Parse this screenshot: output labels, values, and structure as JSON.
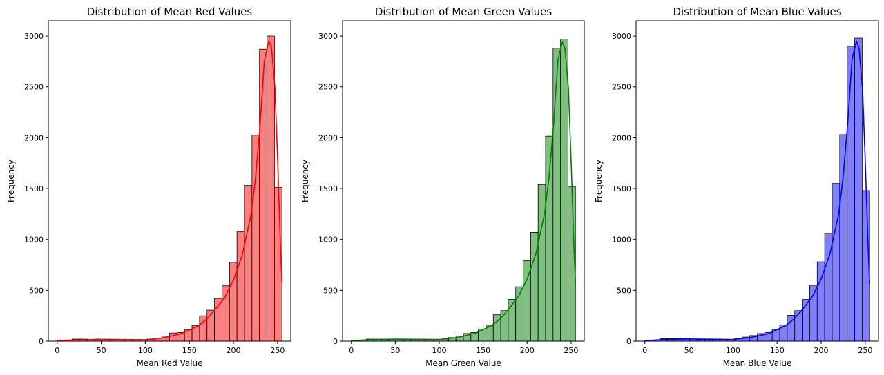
{
  "chart_data": [
    {
      "type": "bar",
      "title": "Distribution of Mean Red Values",
      "xlabel": "Mean Red Value",
      "ylabel": "Frequency",
      "xlim": [
        -10,
        265
      ],
      "ylim": [
        0,
        3150
      ],
      "xticks": [
        0,
        50,
        100,
        150,
        200,
        250
      ],
      "yticks": [
        0,
        500,
        1000,
        1500,
        2000,
        2500,
        3000
      ],
      "bin_edges": [
        0,
        8.5,
        17,
        25.5,
        34,
        42.5,
        51,
        59.5,
        68,
        76.5,
        85,
        93.5,
        102,
        110.5,
        119,
        127.5,
        136,
        144.5,
        153,
        161.5,
        170,
        178.5,
        187,
        195.5,
        204,
        212.5,
        221,
        229.5,
        238,
        246.5,
        255
      ],
      "values": [
        5,
        10,
        20,
        20,
        15,
        20,
        15,
        15,
        10,
        15,
        15,
        10,
        20,
        30,
        50,
        80,
        85,
        115,
        155,
        250,
        305,
        420,
        545,
        775,
        1075,
        1530,
        2025,
        2870,
        3000,
        1510
      ],
      "kde": [
        [
          0,
          5
        ],
        [
          20,
          12
        ],
        [
          50,
          18
        ],
        [
          100,
          14
        ],
        [
          120,
          32
        ],
        [
          140,
          72
        ],
        [
          160,
          150
        ],
        [
          170,
          220
        ],
        [
          180,
          320
        ],
        [
          190,
          430
        ],
        [
          200,
          600
        ],
        [
          210,
          850
        ],
        [
          220,
          1250
        ],
        [
          225,
          1600
        ],
        [
          230,
          2100
        ],
        [
          235,
          2750
        ],
        [
          240,
          2950
        ],
        [
          243,
          2900
        ],
        [
          247,
          2500
        ],
        [
          250,
          1800
        ],
        [
          253,
          1000
        ],
        [
          255,
          580
        ]
      ],
      "bar_color": "#ff7f7f",
      "line_color": "#ff0000"
    },
    {
      "type": "bar",
      "title": "Distribution of Mean Green Values",
      "xlabel": "Mean Green Value",
      "ylabel": "Frequency",
      "xlim": [
        -10,
        265
      ],
      "ylim": [
        0,
        3150
      ],
      "xticks": [
        0,
        50,
        100,
        150,
        200,
        250
      ],
      "yticks": [
        0,
        500,
        1000,
        1500,
        2000,
        2500,
        3000
      ],
      "bin_edges": [
        0,
        8.5,
        17,
        25.5,
        34,
        42.5,
        51,
        59.5,
        68,
        76.5,
        85,
        93.5,
        102,
        110.5,
        119,
        127.5,
        136,
        144.5,
        153,
        161.5,
        170,
        178.5,
        187,
        195.5,
        204,
        212.5,
        221,
        229.5,
        238,
        246.5,
        255
      ],
      "values": [
        5,
        10,
        20,
        20,
        20,
        20,
        15,
        15,
        10,
        20,
        15,
        10,
        20,
        35,
        50,
        75,
        85,
        120,
        150,
        260,
        300,
        410,
        535,
        790,
        1070,
        1540,
        2015,
        2880,
        2970,
        1520
      ],
      "kde": [
        [
          0,
          5
        ],
        [
          20,
          14
        ],
        [
          50,
          20
        ],
        [
          100,
          16
        ],
        [
          120,
          34
        ],
        [
          140,
          75
        ],
        [
          160,
          155
        ],
        [
          170,
          225
        ],
        [
          180,
          325
        ],
        [
          190,
          440
        ],
        [
          200,
          610
        ],
        [
          210,
          860
        ],
        [
          220,
          1260
        ],
        [
          225,
          1620
        ],
        [
          230,
          2120
        ],
        [
          235,
          2760
        ],
        [
          240,
          2940
        ],
        [
          243,
          2880
        ],
        [
          247,
          2480
        ],
        [
          250,
          1780
        ],
        [
          253,
          990
        ],
        [
          255,
          570
        ]
      ],
      "bar_color": "#7fbf7f",
      "line_color": "#007f00"
    },
    {
      "type": "bar",
      "title": "Distribution of Mean Blue Values",
      "xlabel": "Mean Blue Value",
      "ylabel": "Frequency",
      "xlim": [
        -10,
        265
      ],
      "ylim": [
        0,
        3150
      ],
      "xticks": [
        0,
        50,
        100,
        150,
        200,
        250
      ],
      "yticks": [
        0,
        500,
        1000,
        1500,
        2000,
        2500,
        3000
      ],
      "bin_edges": [
        0,
        8.5,
        17,
        25.5,
        34,
        42.5,
        51,
        59.5,
        68,
        76.5,
        85,
        93.5,
        102,
        110.5,
        119,
        127.5,
        136,
        144.5,
        153,
        161.5,
        170,
        178.5,
        187,
        195.5,
        204,
        212.5,
        221,
        229.5,
        238,
        246.5,
        255
      ],
      "values": [
        5,
        10,
        25,
        25,
        25,
        20,
        20,
        15,
        15,
        20,
        15,
        10,
        25,
        40,
        55,
        75,
        85,
        115,
        160,
        255,
        300,
        410,
        550,
        780,
        1060,
        1550,
        2030,
        2900,
        2980,
        1480
      ],
      "kde": [
        [
          0,
          5
        ],
        [
          20,
          15
        ],
        [
          45,
          22
        ],
        [
          100,
          16
        ],
        [
          120,
          36
        ],
        [
          140,
          74
        ],
        [
          160,
          155
        ],
        [
          170,
          225
        ],
        [
          180,
          325
        ],
        [
          190,
          440
        ],
        [
          200,
          610
        ],
        [
          210,
          860
        ],
        [
          220,
          1260
        ],
        [
          225,
          1620
        ],
        [
          230,
          2130
        ],
        [
          235,
          2770
        ],
        [
          240,
          2950
        ],
        [
          243,
          2880
        ],
        [
          247,
          2470
        ],
        [
          250,
          1760
        ],
        [
          253,
          980
        ],
        [
          255,
          560
        ]
      ],
      "bar_color": "#7f7fff",
      "line_color": "#0000ff"
    }
  ]
}
